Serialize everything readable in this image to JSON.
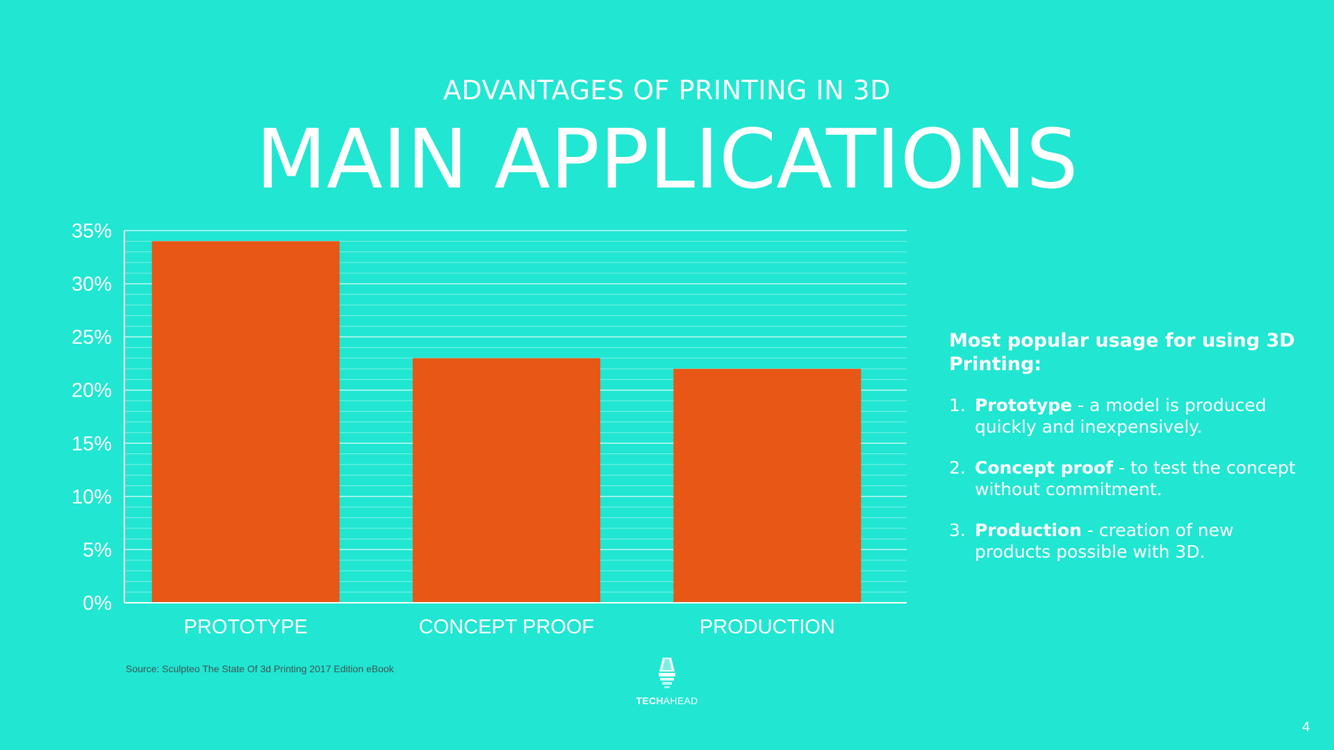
{
  "header": {
    "subtitle": "ADVANTAGES OF PRINTING IN 3D",
    "title": "MAIN APPLICATIONS"
  },
  "chart_data": {
    "type": "bar",
    "categories": [
      "PROTOTYPE",
      "CONCEPT PROOF",
      "PRODUCTION"
    ],
    "values": [
      34,
      23,
      22
    ],
    "y_ticks": [
      "0%",
      "5%",
      "10%",
      "15%",
      "20%",
      "25%",
      "30%",
      "35%"
    ],
    "ylim": [
      0,
      35
    ],
    "unit": "%",
    "bar_color": "#e85716",
    "grid": true
  },
  "source": "Source: Sculpteo The State Of 3d Printing 2017 Edition eBook",
  "side": {
    "heading": "Most popular usage for using 3D Printing:",
    "items": [
      {
        "num": "1.",
        "bold": "Prototype",
        "text": " - a model is produced quickly and inexpensively."
      },
      {
        "num": "2.",
        "bold": "Concept proof",
        "text": " - to test the concept without commitment."
      },
      {
        "num": "3.",
        "bold": "Production",
        "text": " - creation of new products possible with 3D."
      }
    ]
  },
  "logo": {
    "part1": "TECH",
    "part2": "AHEAD",
    "icon": "lamp-logo-icon"
  },
  "page_number": "4",
  "colors": {
    "background": "#20e6d2",
    "bar": "#e85716",
    "text": "#ffffff"
  }
}
